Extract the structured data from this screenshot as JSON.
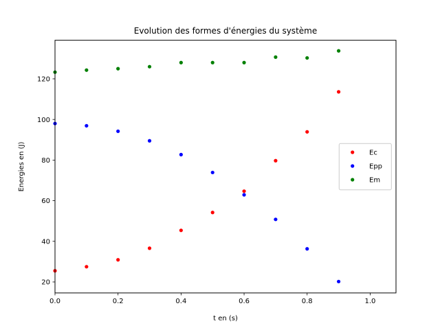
{
  "chart_data": {
    "type": "scatter",
    "title": "Evolution des formes d'énergies du système",
    "xlabel": "t en (s)",
    "ylabel": "Energies en (J)",
    "xlim": [
      0.0,
      1.082
    ],
    "ylim": [
      14.6,
      139.0
    ],
    "xticks": [
      0.0,
      0.2,
      0.4,
      0.6,
      0.8,
      1.0
    ],
    "xtick_labels": [
      "0.0",
      "0.2",
      "0.4",
      "0.6",
      "0.8",
      "1.0"
    ],
    "yticks": [
      20,
      40,
      60,
      80,
      100,
      120
    ],
    "ytick_labels": [
      "20",
      "40",
      "60",
      "80",
      "100",
      "120"
    ],
    "grid": false,
    "legend_position": "center right",
    "x": [
      0.0,
      0.1,
      0.2,
      0.3,
      0.4,
      0.5,
      0.6,
      0.7,
      0.8,
      0.9
    ],
    "series": [
      {
        "name": "Ec",
        "color": "#ff0000",
        "values": [
          25.5,
          27.5,
          30.9,
          36.6,
          45.4,
          54.2,
          64.7,
          79.7,
          93.9,
          113.6
        ]
      },
      {
        "name": "Epp",
        "color": "#0000ff",
        "values": [
          98.0,
          96.9,
          94.2,
          89.5,
          82.7,
          73.9,
          62.9,
          50.8,
          36.3,
          20.2
        ]
      },
      {
        "name": "Em",
        "color": "#008000",
        "values": [
          123.3,
          124.3,
          125.0,
          126.0,
          128.0,
          128.0,
          128.0,
          130.7,
          130.3,
          133.8
        ]
      }
    ]
  }
}
